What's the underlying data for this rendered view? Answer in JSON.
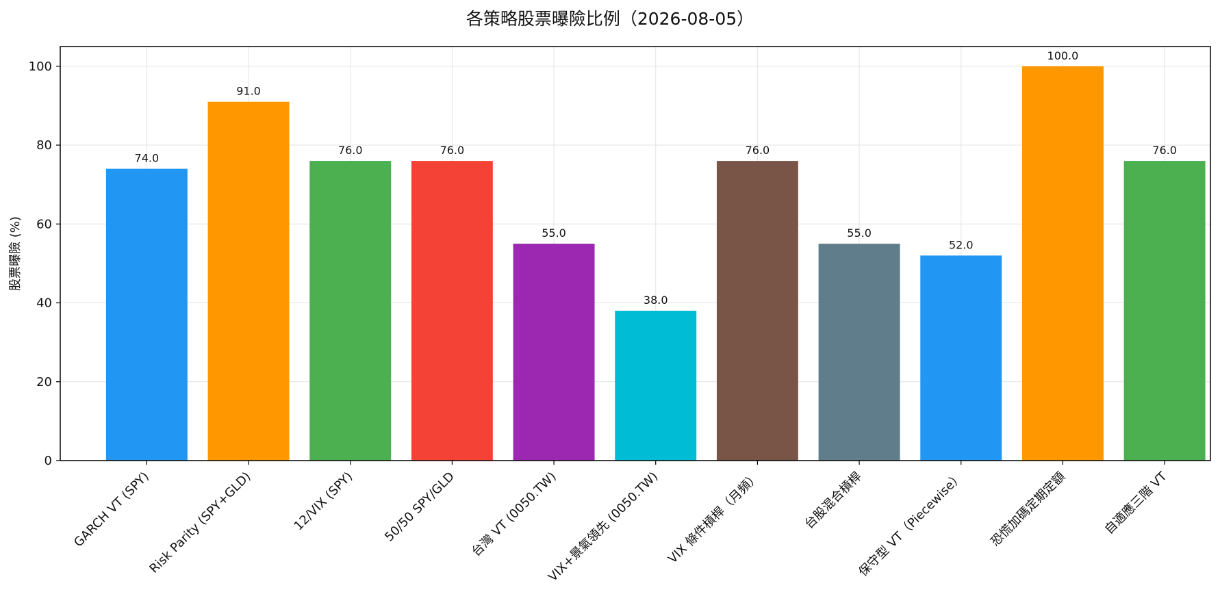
{
  "chart_data": {
    "type": "bar",
    "title": "各策略股票曝險比例（2026-08-05）",
    "xlabel": "",
    "ylabel": "股票曝險 (%)",
    "ylim": [
      0,
      105
    ],
    "yticks": [
      0,
      20,
      40,
      60,
      80,
      100
    ],
    "grid": true,
    "categories": [
      "GARCH VT (SPY)",
      "Risk Parity (SPY+GLD)",
      "12/VIX (SPY)",
      "50/50 SPY/GLD",
      "台灣 VT (0050.TW)",
      "VIX+景氣領先 (0050.TW)",
      "VIX 條件槓桿（月頻）",
      "台股混合槓桿",
      "保守型 VT（Piecewise）",
      "恐慌加碼定期定額",
      "自適應三階 VT"
    ],
    "values": [
      74.0,
      91.0,
      76.0,
      76.0,
      55.0,
      38.0,
      76.0,
      55.0,
      52.0,
      100.0,
      76.0
    ],
    "value_labels": [
      "74.0",
      "91.0",
      "76.0",
      "76.0",
      "55.0",
      "38.0",
      "76.0",
      "55.0",
      "52.0",
      "100.0",
      "76.0"
    ],
    "colors": [
      "#2196F3",
      "#FF9800",
      "#4CAF50",
      "#F44336",
      "#9C27B0",
      "#00BCD4",
      "#795548",
      "#607D8B",
      "#2196F3",
      "#FF9800",
      "#4CAF50"
    ]
  }
}
